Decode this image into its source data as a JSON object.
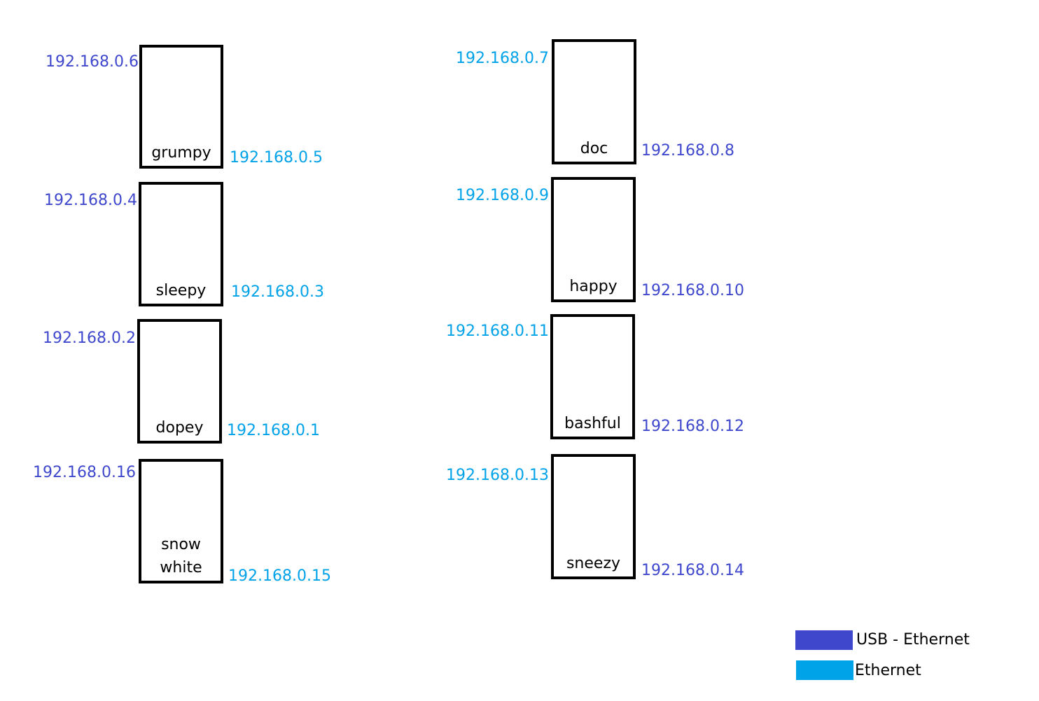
{
  "colors": {
    "usb_ethernet": "#3f48cc",
    "ethernet": "#00a2e8",
    "box_border": "#000000"
  },
  "nodes": [
    {
      "name": "grumpy",
      "usb_ip": "192.168.0.6",
      "eth_ip": "192.168.0.5"
    },
    {
      "name": "sleepy",
      "usb_ip": "192.168.0.4",
      "eth_ip": "192.168.0.3"
    },
    {
      "name": "dopey",
      "usb_ip": "192.168.0.2",
      "eth_ip": "192.168.0.1"
    },
    {
      "name": "snow\nwhite",
      "usb_ip": "192.168.0.16",
      "eth_ip": "192.168.0.15"
    },
    {
      "name": "doc",
      "eth_ip": "192.168.0.7",
      "usb_ip": "192.168.0.8"
    },
    {
      "name": "happy",
      "eth_ip": "192.168.0.9",
      "usb_ip": "192.168.0.10"
    },
    {
      "name": "bashful",
      "eth_ip": "192.168.0.11",
      "usb_ip": "192.168.0.12"
    },
    {
      "name": "sneezy",
      "eth_ip": "192.168.0.13",
      "usb_ip": "192.168.0.14"
    }
  ],
  "legend": {
    "usb_label": "USB - Ethernet",
    "eth_label": "Ethernet"
  }
}
